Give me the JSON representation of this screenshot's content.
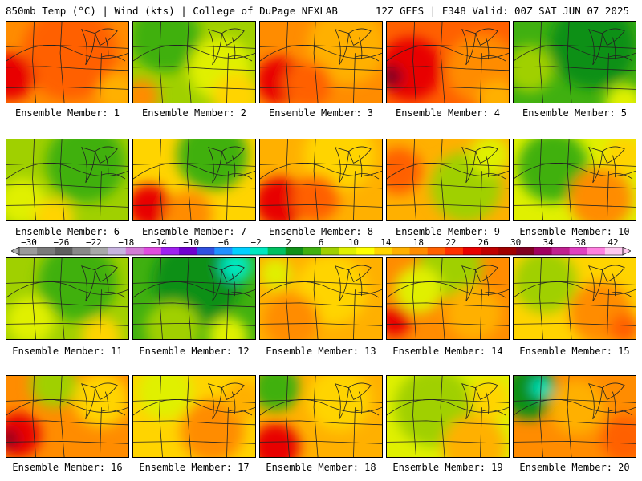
{
  "header": {
    "left": "850mb Temp (°C) | Wind (kts) | College of DuPage NEXLAB",
    "right": "12Z GEFS | F348 Valid: 00Z SAT JUN 07 2025"
  },
  "colorbar": {
    "labels": [
      "−30",
      "−26",
      "−22",
      "−18",
      "−14",
      "−10",
      "−6",
      "−2",
      "2",
      "6",
      "10",
      "14",
      "18",
      "22",
      "26",
      "30",
      "34",
      "38",
      "42"
    ],
    "colors": [
      "#9a9a9a",
      "#7a7a7a",
      "#5f5f5f",
      "#888888",
      "#a8a8a8",
      "#c8b4e0",
      "#d27cd6",
      "#e04ce0",
      "#a020f0",
      "#7000d0",
      "#3050e0",
      "#2090ff",
      "#00d0ff",
      "#00e8c0",
      "#00c060",
      "#109018",
      "#40b010",
      "#a0d000",
      "#e0f000",
      "#ffff00",
      "#ffd400",
      "#ffb000",
      "#ff8c00",
      "#ff6000",
      "#ff3000",
      "#e80000",
      "#c00000",
      "#a00000",
      "#800020",
      "#a00060",
      "#c02090",
      "#e040c0",
      "#ff80e0",
      "#ffc8f0"
    ]
  },
  "members": [
    {
      "label": "Ensemble Member: 1",
      "base": "#ff8c00",
      "blobs": [
        {
          "c": "#ff6000",
          "x": 80,
          "y": 40,
          "r": 60
        },
        {
          "c": "#e80000",
          "x": 5,
          "y": 70,
          "r": 30
        },
        {
          "c": "#ffb000",
          "x": 140,
          "y": 90,
          "r": 25
        }
      ]
    },
    {
      "label": "Ensemble Member: 2",
      "base": "#a0d000",
      "blobs": [
        {
          "c": "#40b010",
          "x": 40,
          "y": 20,
          "r": 45
        },
        {
          "c": "#e0f000",
          "x": 110,
          "y": 60,
          "r": 40
        },
        {
          "c": "#ffd400",
          "x": 130,
          "y": 95,
          "r": 30
        },
        {
          "c": "#ff8c00",
          "x": 10,
          "y": 95,
          "r": 22
        }
      ]
    },
    {
      "label": "Ensemble Member: 3",
      "base": "#ff8c00",
      "blobs": [
        {
          "c": "#ffb000",
          "x": 110,
          "y": 30,
          "r": 50
        },
        {
          "c": "#e80000",
          "x": 25,
          "y": 75,
          "r": 30
        },
        {
          "c": "#ff6000",
          "x": 60,
          "y": 80,
          "r": 30
        }
      ]
    },
    {
      "label": "Ensemble Member: 4",
      "base": "#ff6000",
      "blobs": [
        {
          "c": "#e80000",
          "x": 30,
          "y": 60,
          "r": 40
        },
        {
          "c": "#800020",
          "x": 5,
          "y": 70,
          "r": 15
        },
        {
          "c": "#ff8c00",
          "x": 120,
          "y": 60,
          "r": 45
        },
        {
          "c": "#ffb000",
          "x": 140,
          "y": 100,
          "r": 25
        }
      ]
    },
    {
      "label": "Ensemble Member: 5",
      "base": "#40b010",
      "blobs": [
        {
          "c": "#109018",
          "x": 100,
          "y": 30,
          "r": 55
        },
        {
          "c": "#a0d000",
          "x": 20,
          "y": 60,
          "r": 30
        },
        {
          "c": "#e0f000",
          "x": 140,
          "y": 105,
          "r": 25
        }
      ]
    },
    {
      "label": "Ensemble Member: 6",
      "base": "#a0d000",
      "blobs": [
        {
          "c": "#40b010",
          "x": 100,
          "y": 30,
          "r": 50
        },
        {
          "c": "#e0f000",
          "x": 20,
          "y": 80,
          "r": 30
        },
        {
          "c": "#ffd400",
          "x": 60,
          "y": 100,
          "r": 25
        }
      ]
    },
    {
      "label": "Ensemble Member: 7",
      "base": "#ffd400",
      "blobs": [
        {
          "c": "#40b010",
          "x": 100,
          "y": 20,
          "r": 45
        },
        {
          "c": "#e80000",
          "x": 20,
          "y": 85,
          "r": 28
        },
        {
          "c": "#ff8c00",
          "x": 70,
          "y": 95,
          "r": 30
        }
      ]
    },
    {
      "label": "Ensemble Member: 8",
      "base": "#ffb000",
      "blobs": [
        {
          "c": "#ffd400",
          "x": 100,
          "y": 20,
          "r": 45
        },
        {
          "c": "#e80000",
          "x": 25,
          "y": 80,
          "r": 32
        },
        {
          "c": "#ff6000",
          "x": 70,
          "y": 75,
          "r": 30
        }
      ]
    },
    {
      "label": "Ensemble Member: 9",
      "base": "#ffb000",
      "blobs": [
        {
          "c": "#a0d000",
          "x": 100,
          "y": 60,
          "r": 45
        },
        {
          "c": "#ff6000",
          "x": 15,
          "y": 40,
          "r": 30
        },
        {
          "c": "#e0f000",
          "x": 130,
          "y": 20,
          "r": 25
        }
      ]
    },
    {
      "label": "Ensemble Member: 10",
      "base": "#e0f000",
      "blobs": [
        {
          "c": "#40b010",
          "x": 50,
          "y": 35,
          "r": 45
        },
        {
          "c": "#ff8c00",
          "x": 110,
          "y": 75,
          "r": 40
        },
        {
          "c": "#ffd400",
          "x": 140,
          "y": 20,
          "r": 25
        }
      ]
    },
    {
      "label": "Ensemble Member: 11",
      "base": "#a0d000",
      "blobs": [
        {
          "c": "#40b010",
          "x": 90,
          "y": 30,
          "r": 50
        },
        {
          "c": "#e0f000",
          "x": 30,
          "y": 80,
          "r": 30
        },
        {
          "c": "#ffd400",
          "x": 120,
          "y": 100,
          "r": 25
        }
      ]
    },
    {
      "label": "Ensemble Member: 12",
      "base": "#40b010",
      "blobs": [
        {
          "c": "#109018",
          "x": 80,
          "y": 30,
          "r": 55
        },
        {
          "c": "#00e8c0",
          "x": 130,
          "y": 10,
          "r": 20
        },
        {
          "c": "#a0d000",
          "x": 50,
          "y": 90,
          "r": 35
        },
        {
          "c": "#e0f000",
          "x": 120,
          "y": 100,
          "r": 25
        }
      ]
    },
    {
      "label": "Ensemble Member: 13",
      "base": "#ffb000",
      "blobs": [
        {
          "c": "#ffd400",
          "x": 90,
          "y": 40,
          "r": 45
        },
        {
          "c": "#ff8c00",
          "x": 40,
          "y": 80,
          "r": 35
        },
        {
          "c": "#e0f000",
          "x": 20,
          "y": 20,
          "r": 20
        }
      ]
    },
    {
      "label": "Ensemble Member: 14",
      "base": "#ff8c00",
      "blobs": [
        {
          "c": "#a0d000",
          "x": 80,
          "y": 10,
          "r": 40
        },
        {
          "c": "#e0f000",
          "x": 40,
          "y": 40,
          "r": 30
        },
        {
          "c": "#e80000",
          "x": 10,
          "y": 80,
          "r": 20
        },
        {
          "c": "#ffb000",
          "x": 110,
          "y": 70,
          "r": 35
        }
      ]
    },
    {
      "label": "Ensemble Member: 15",
      "base": "#ffd400",
      "blobs": [
        {
          "c": "#a0d000",
          "x": 40,
          "y": 30,
          "r": 40
        },
        {
          "c": "#ff8c00",
          "x": 110,
          "y": 70,
          "r": 40
        },
        {
          "c": "#ff6000",
          "x": 140,
          "y": 90,
          "r": 20
        }
      ]
    },
    {
      "label": "Ensemble Member: 16",
      "base": "#ff8c00",
      "blobs": [
        {
          "c": "#a0d000",
          "x": 60,
          "y": 10,
          "r": 30
        },
        {
          "c": "#ffd400",
          "x": 120,
          "y": 30,
          "r": 35
        },
        {
          "c": "#e80000",
          "x": 15,
          "y": 75,
          "r": 28
        },
        {
          "c": "#800020",
          "x": 3,
          "y": 80,
          "r": 12
        }
      ]
    },
    {
      "label": "Ensemble Member: 17",
      "base": "#ffd400",
      "blobs": [
        {
          "c": "#e0f000",
          "x": 40,
          "y": 20,
          "r": 35
        },
        {
          "c": "#ff8c00",
          "x": 100,
          "y": 70,
          "r": 40
        },
        {
          "c": "#ffb000",
          "x": 140,
          "y": 30,
          "r": 25
        }
      ]
    },
    {
      "label": "Ensemble Member: 18",
      "base": "#ffb000",
      "blobs": [
        {
          "c": "#40b010",
          "x": 20,
          "y": 15,
          "r": 30
        },
        {
          "c": "#e80000",
          "x": 20,
          "y": 90,
          "r": 30
        },
        {
          "c": "#ffd400",
          "x": 100,
          "y": 30,
          "r": 40
        }
      ]
    },
    {
      "label": "Ensemble Member: 19",
      "base": "#e0f000",
      "blobs": [
        {
          "c": "#a0d000",
          "x": 60,
          "y": 40,
          "r": 50
        },
        {
          "c": "#ffb000",
          "x": 110,
          "y": 90,
          "r": 40
        },
        {
          "c": "#ffd400",
          "x": 130,
          "y": 30,
          "r": 25
        }
      ]
    },
    {
      "label": "Ensemble Member: 20",
      "base": "#ff8c00",
      "blobs": [
        {
          "c": "#109018",
          "x": 20,
          "y": 20,
          "r": 35
        },
        {
          "c": "#00e8c0",
          "x": 35,
          "y": 15,
          "r": 12
        },
        {
          "c": "#ffb000",
          "x": 80,
          "y": 40,
          "r": 35
        },
        {
          "c": "#ff6000",
          "x": 140,
          "y": 80,
          "r": 30
        }
      ]
    }
  ]
}
